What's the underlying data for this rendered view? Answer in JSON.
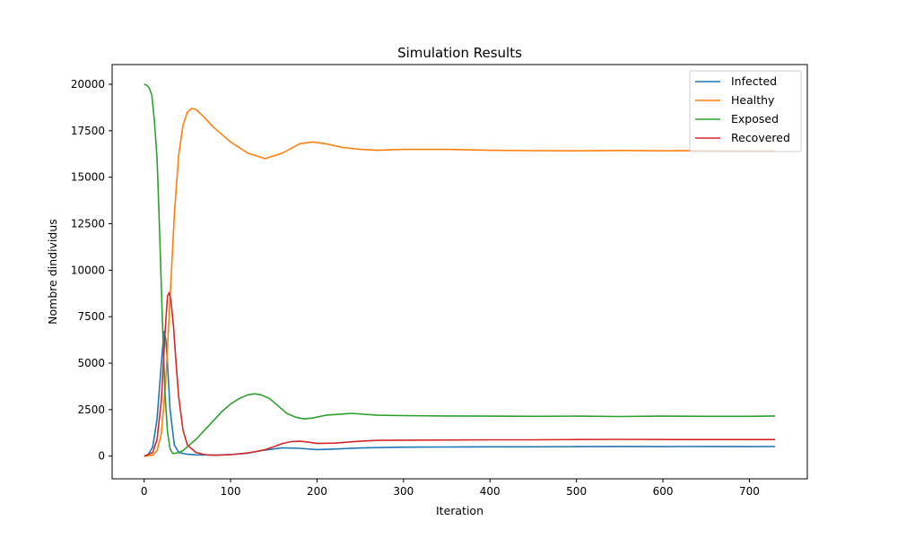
{
  "chart_data": {
    "type": "line",
    "title": "Simulation Results",
    "xlabel": "Iteration",
    "ylabel": "Nombre dindividus",
    "xlim": [
      -37,
      767
    ],
    "ylim": [
      -1220,
      21060
    ],
    "xticks": [
      0,
      100,
      200,
      300,
      400,
      500,
      600,
      700
    ],
    "yticks": [
      0,
      2500,
      5000,
      7500,
      10000,
      12500,
      15000,
      17500,
      20000
    ],
    "grid": false,
    "legend_position": "top-right",
    "series": [
      {
        "name": "Infected",
        "color": "#1f77b4",
        "x": [
          0,
          5,
          10,
          15,
          20,
          23,
          25,
          27,
          30,
          35,
          40,
          50,
          60,
          80,
          100,
          120,
          140,
          160,
          180,
          200,
          220,
          250,
          300,
          350,
          400,
          450,
          500,
          550,
          600,
          650,
          700,
          730
        ],
        "y": [
          0,
          100,
          500,
          2000,
          5000,
          6700,
          6300,
          5000,
          2500,
          600,
          200,
          100,
          70,
          60,
          80,
          160,
          330,
          450,
          420,
          350,
          380,
          440,
          480,
          490,
          500,
          500,
          510,
          520,
          510,
          520,
          510,
          515
        ]
      },
      {
        "name": "Healthy",
        "color": "#ff7f0e",
        "x": [
          0,
          10,
          15,
          20,
          25,
          30,
          35,
          40,
          45,
          50,
          55,
          60,
          70,
          80,
          100,
          120,
          140,
          160,
          180,
          195,
          210,
          230,
          250,
          270,
          300,
          350,
          400,
          450,
          500,
          550,
          600,
          650,
          700,
          730
        ],
        "y": [
          0,
          50,
          300,
          1200,
          4000,
          8500,
          13000,
          16200,
          17800,
          18500,
          18700,
          18650,
          18200,
          17700,
          16900,
          16300,
          16000,
          16300,
          16800,
          16900,
          16800,
          16600,
          16500,
          16450,
          16500,
          16500,
          16450,
          16430,
          16420,
          16440,
          16420,
          16430,
          16420,
          16420
        ]
      },
      {
        "name": "Exposed",
        "color": "#2ca02c",
        "x": [
          0,
          3,
          6,
          9,
          12,
          15,
          18,
          21,
          24,
          27,
          30,
          33,
          36,
          40,
          45,
          50,
          60,
          70,
          80,
          90,
          100,
          110,
          120,
          128,
          135,
          145,
          155,
          165,
          175,
          185,
          195,
          210,
          240,
          270,
          300,
          350,
          400,
          450,
          500,
          550,
          600,
          650,
          700,
          730
        ],
        "y": [
          20000,
          19950,
          19800,
          19400,
          18000,
          16000,
          12000,
          7500,
          3500,
          1300,
          400,
          150,
          150,
          200,
          300,
          500,
          900,
          1400,
          1900,
          2400,
          2800,
          3100,
          3300,
          3350,
          3300,
          3100,
          2700,
          2300,
          2100,
          2000,
          2050,
          2200,
          2300,
          2200,
          2180,
          2160,
          2150,
          2140,
          2150,
          2130,
          2150,
          2140,
          2140,
          2160
        ]
      },
      {
        "name": "Recovered",
        "color": "#d62728",
        "x": [
          0,
          10,
          15,
          20,
          24,
          27,
          29,
          31,
          34,
          37,
          40,
          45,
          50,
          60,
          70,
          80,
          90,
          100,
          110,
          120,
          130,
          140,
          150,
          160,
          170,
          180,
          190,
          200,
          220,
          250,
          270,
          300,
          350,
          400,
          450,
          500,
          550,
          600,
          650,
          700,
          730
        ],
        "y": [
          0,
          200,
          900,
          3000,
          6500,
          8600,
          8800,
          8400,
          7000,
          5000,
          3200,
          1400,
          600,
          200,
          80,
          50,
          60,
          80,
          120,
          180,
          250,
          350,
          500,
          680,
          780,
          800,
          750,
          680,
          700,
          800,
          850,
          860,
          870,
          880,
          880,
          890,
          900,
          890,
          890,
          890,
          890
        ]
      }
    ]
  }
}
